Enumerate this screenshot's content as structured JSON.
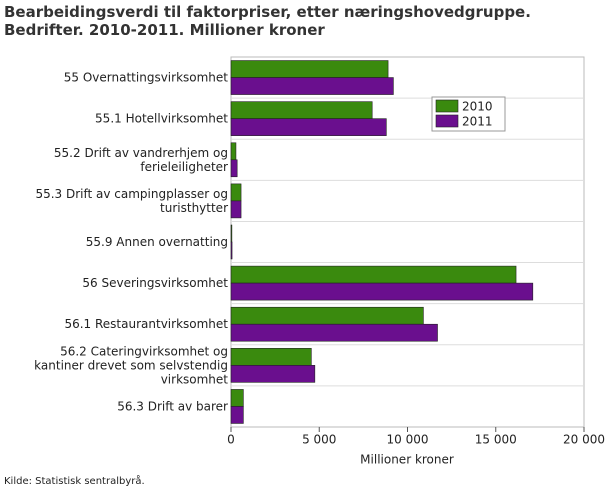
{
  "chart_data": {
    "type": "hbar",
    "title": "Bearbeidingsverdi til faktorpriser, etter næringshovedgruppe. Bedrifter. 2010-2011. Millioner kroner",
    "categories": [
      "55 Overnattingsvirksomhet",
      "55.1 Hotellvirksomhet",
      "55.2 Drift av vandrerhjem og ferieleiligheter",
      "55.3 Drift av campingplasser og turisthytter",
      "55.9 Annen overnatting",
      "56 Severingsvirksomhet",
      "56.1 Restaurantvirksomhet",
      "56.2 Cateringvirksomhet og kantiner drevet som selvstendig virksomhet",
      "56.3 Drift av barer"
    ],
    "series": [
      {
        "name": "2010",
        "color": "#3a8a0e",
        "values": [
          8900,
          8000,
          280,
          570,
          50,
          16150,
          10900,
          4550,
          700
        ]
      },
      {
        "name": "2011",
        "color": "#6a0f8e",
        "values": [
          9200,
          8800,
          350,
          570,
          60,
          17100,
          11700,
          4750,
          700
        ]
      }
    ],
    "xlabel": "Millioner kroner",
    "xlim": [
      0,
      20000
    ],
    "xticks": [
      0,
      {
        "value": 5000,
        "label": "5 000"
      },
      {
        "value": 10000,
        "label": "10 000"
      },
      {
        "value": 15000,
        "label": "15 000"
      },
      {
        "value": 20000,
        "label": "20 000"
      }
    ],
    "legend": "upper right",
    "source": "Kilde: Statistisk sentralbyrå."
  }
}
